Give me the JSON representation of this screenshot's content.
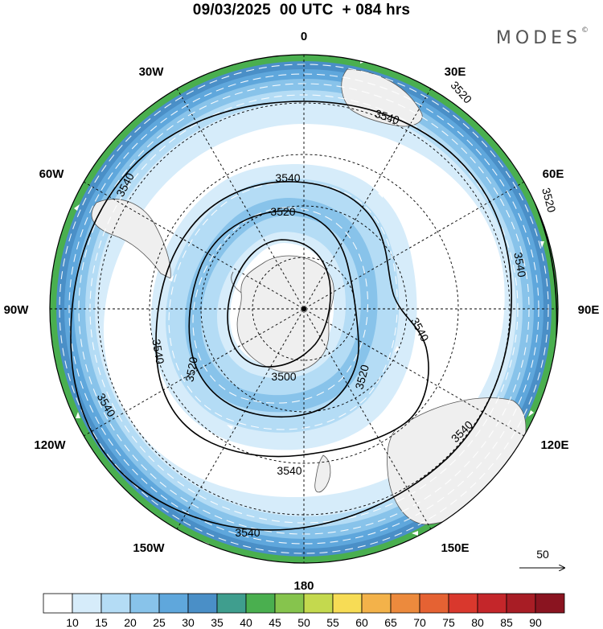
{
  "header": {
    "title": "09/03/2025  00 UTC  + 084 hrs",
    "brand": "MODES",
    "brand_mark": "©"
  },
  "map": {
    "projection": "polar-stereographic",
    "hemisphere": "south",
    "longitude_labels": [
      "0",
      "30E",
      "60E",
      "90E",
      "120E",
      "150E",
      "180",
      "150W",
      "120W",
      "90W",
      "60W",
      "30W"
    ],
    "contours": [
      {
        "value": "3500",
        "labels": [
          "3500"
        ]
      },
      {
        "value": "3520",
        "labels": [
          "3520",
          "3520",
          "3520",
          "3520"
        ]
      },
      {
        "value": "3540",
        "labels": [
          "3540",
          "3540",
          "3540",
          "3540",
          "3540",
          "3540",
          "3540",
          "3540"
        ]
      }
    ],
    "wind_reference": "50",
    "colors": {
      "land": "#efefef",
      "band_15": "#d6ecfa",
      "band_20": "#b4dcf5",
      "band_25": "#88c3ea",
      "band_30": "#5fa7dc",
      "band_35": "#4a8fc7",
      "band_40": "#3f9e8e",
      "band_45": "#4aaf4f"
    }
  },
  "colorbar": {
    "labels": [
      "10",
      "15",
      "20",
      "25",
      "30",
      "35",
      "40",
      "45",
      "50",
      "55",
      "60",
      "65",
      "70",
      "75",
      "80",
      "85",
      "90"
    ],
    "colors": [
      "#ffffff",
      "#d6ecfa",
      "#b4dcf5",
      "#88c3ea",
      "#5fa7dc",
      "#4a8fc7",
      "#3f9e8e",
      "#4aaf4f",
      "#86c44d",
      "#c4d94e",
      "#f7dc55",
      "#f3b24a",
      "#ec8a3d",
      "#e56233",
      "#d9382d",
      "#c4262a",
      "#a81d25",
      "#8a1420"
    ]
  }
}
